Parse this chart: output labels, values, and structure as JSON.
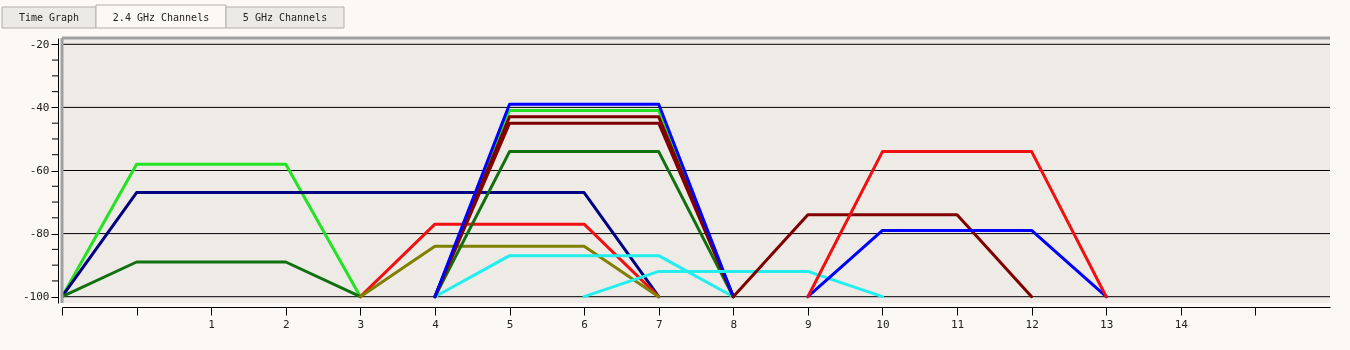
{
  "chart_data": {
    "type": "line",
    "annotations": [
      "Time Graph",
      "2.4 GHz Channels",
      "5 GHz Channels"
    ],
    "xlim": [
      -1,
      16
    ],
    "ylim": [
      -102,
      -18
    ],
    "xticks": [
      {
        "value": -1,
        "label": null
      },
      {
        "value": 0,
        "label": null
      },
      1,
      2,
      3,
      4,
      5,
      6,
      7,
      8,
      9,
      10,
      11,
      12,
      13,
      14,
      {
        "value": 15,
        "label": null
      }
    ],
    "yticks": [
      -20,
      {
        "value": -25,
        "label": null
      },
      {
        "value": -30,
        "label": null
      },
      {
        "value": -35,
        "label": null
      },
      -40,
      {
        "value": -45,
        "label": null
      },
      {
        "value": -50,
        "label": null
      },
      {
        "value": -55,
        "label": null
      },
      -60,
      {
        "value": -65,
        "label": null
      },
      {
        "value": -70,
        "label": null
      },
      {
        "value": -75,
        "label": null
      },
      -80,
      {
        "value": -85,
        "label": null
      },
      {
        "value": -90,
        "label": null
      },
      {
        "value": -95,
        "label": null
      },
      -100
    ],
    "grid": "y",
    "legend": false,
    "marker": "none",
    "line_style": "solid",
    "series": [
      {
        "color": "#22e322",
        "x": [
          -1,
          0,
          2,
          3
        ],
        "values": [
          -100,
          -58,
          -58,
          -100
        ]
      },
      {
        "color": "#000080",
        "x": [
          -1,
          0,
          6,
          7
        ],
        "values": [
          -100,
          -67,
          -67,
          -100
        ]
      },
      {
        "color": "#107010",
        "x": [
          -1,
          0,
          2,
          3
        ],
        "values": [
          -100,
          -89,
          -89,
          -100
        ]
      },
      {
        "color": "#f01010",
        "x": [
          3,
          4,
          6,
          7
        ],
        "values": [
          -100,
          -77,
          -77,
          -100
        ]
      },
      {
        "color": "#808000",
        "x": [
          3,
          4,
          6,
          7
        ],
        "values": [
          -100,
          -84,
          -84,
          -100
        ]
      },
      {
        "color": "#22eeee",
        "x": [
          4,
          5,
          7,
          8
        ],
        "values": [
          -100,
          -87,
          -87,
          -100
        ]
      },
      {
        "color": "#107010",
        "x": [
          4,
          5,
          7,
          8
        ],
        "values": [
          -100,
          -54,
          -54,
          -100
        ]
      },
      {
        "color": "#22e322",
        "x": [
          4,
          5,
          7,
          8
        ],
        "values": [
          -100,
          -41,
          -41,
          -100
        ]
      },
      {
        "color": "#800000",
        "x": [
          4,
          5,
          7,
          8
        ],
        "values": [
          -100,
          -45,
          -45,
          -100
        ]
      },
      {
        "color": "#800000",
        "x": [
          4,
          5,
          7,
          8
        ],
        "values": [
          -100,
          -43,
          -43,
          -100
        ]
      },
      {
        "color": "#0000ff",
        "x": [
          4,
          5,
          7,
          8
        ],
        "values": [
          -100,
          -39,
          -39,
          -100
        ]
      },
      {
        "color": "#22eeee",
        "x": [
          6,
          7,
          9,
          10
        ],
        "values": [
          -100,
          -92,
          -92,
          -100
        ]
      },
      {
        "color": "#800000",
        "x": [
          8,
          9,
          11,
          12
        ],
        "values": [
          -100,
          -74,
          -74,
          -100
        ]
      },
      {
        "color": "#0000ff",
        "x": [
          9,
          10,
          12,
          13
        ],
        "values": [
          -100,
          -79,
          -79,
          -100
        ]
      },
      {
        "color": "#f01010",
        "x": [
          9,
          10,
          12,
          13
        ],
        "values": [
          -100,
          -54,
          -54,
          -100
        ]
      }
    ]
  }
}
